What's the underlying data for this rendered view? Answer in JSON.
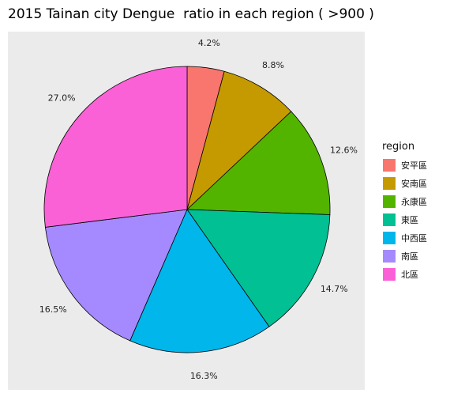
{
  "chart_data": {
    "type": "pie",
    "title": "2015 Tainan city Dengue  ratio in each region ( >900 )",
    "legend_title": "region",
    "legend_position": "right",
    "categories": [
      "安平區",
      "安南區",
      "永康區",
      "東區",
      "中西區",
      "南區",
      "北區"
    ],
    "values": [
      4.2,
      8.8,
      12.6,
      14.7,
      16.3,
      16.5,
      27.0
    ],
    "labels": [
      "4.2%",
      "8.8%",
      "12.6%",
      "14.7%",
      "16.3%",
      "16.5%",
      "27.0%"
    ],
    "colors": [
      "#F8766D",
      "#C49A00",
      "#53B400",
      "#00C094",
      "#00B6EB",
      "#A58AFF",
      "#FB61D7"
    ],
    "panel_background": "#EBEBEB"
  }
}
